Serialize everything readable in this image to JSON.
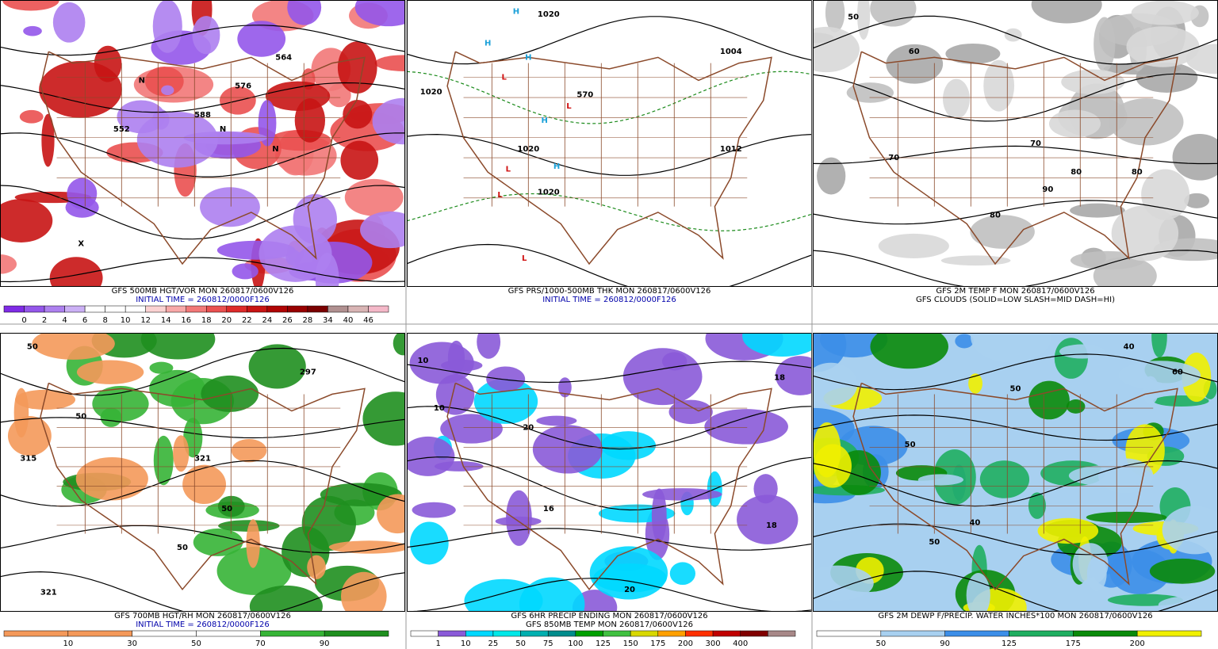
{
  "panels": [
    {
      "captions": [
        {
          "text": "GFS 500MB HGT/VOR MON 260817/0600V126",
          "color": "#000000"
        },
        {
          "text": "INITIAL TIME = 260812/0000F126",
          "color": "#0000aa"
        }
      ],
      "legend": {
        "labels": [
          "0",
          "2",
          "4",
          "6",
          "8",
          "10",
          "12",
          "14",
          "16",
          "18",
          "20",
          "22",
          "24",
          "26",
          "28",
          "34",
          "40",
          "46"
        ],
        "colors": [
          "#7f2be6",
          "#9457ea",
          "#ad80ef",
          "#cbb0f5",
          "#ffffff",
          "#ffffff",
          "#ffffff",
          "#fbd2d2",
          "#f8a8a8",
          "#f27878",
          "#ea5050",
          "#de2a2a",
          "#c81414",
          "#b00404",
          "#980000",
          "#7a0000",
          "#b09090",
          "#d8b4b4",
          "#f4b8c8"
        ]
      },
      "shading": [
        "#f27878",
        "#ea5050",
        "#c81414",
        "#9457ea",
        "#ad80ef"
      ],
      "map_labels": [
        "552",
        "564",
        "576",
        "588",
        "N",
        "N",
        "N",
        "X"
      ]
    },
    {
      "captions": [
        {
          "text": "GFS PRS/1000-500MB THK MON 260817/0600V126",
          "color": "#000000"
        },
        {
          "text": "INITIAL TIME = 260812/0000F126",
          "color": "#0000aa"
        }
      ],
      "shading": [],
      "map_labels": [
        "1020",
        "1020",
        "1020",
        "1020",
        "1004",
        "1012",
        "570",
        "H",
        "H",
        "H",
        "H",
        "H",
        "L",
        "L",
        "L",
        "L",
        "L"
      ]
    },
    {
      "captions": [
        {
          "text": "GFS 2M TEMP F MON 260817/0600V126",
          "color": "#000000"
        },
        {
          "text": "GFS CLOUDS (SOLID=LOW SLASH=MID DASH=HI)",
          "color": "#000000"
        }
      ],
      "shading": [
        "#a8a8a8",
        "#c0c0c0",
        "#d8d8d8"
      ],
      "map_labels": [
        "50",
        "60",
        "70",
        "70",
        "80",
        "80",
        "80",
        "90"
      ]
    },
    {
      "captions": [
        {
          "text": "GFS 700MB HGT/RH MON 260817/0600V126",
          "color": "#000000"
        },
        {
          "text": "INITIAL TIME = 260812/0000F126",
          "color": "#0000aa"
        }
      ],
      "legend": {
        "labels": [
          "10",
          "30",
          "50",
          "70",
          "90"
        ],
        "colors": [
          "#f4995a",
          "#f4995a",
          "#ffffff",
          "#ffffff",
          "#36b436",
          "#1f8f1f"
        ]
      },
      "shading": [
        "#36b436",
        "#1f8f1f",
        "#f4995a"
      ],
      "map_labels": [
        "50",
        "50",
        "50",
        "315",
        "297",
        "321",
        "321",
        "50"
      ]
    },
    {
      "captions": [
        {
          "text": "GFS 6HR PRECIP ENDING MON 260817/0600V126",
          "color": "#000000"
        },
        {
          "text": "GFS 850MB TEMP MON 260817/0600V126",
          "color": "#000000"
        }
      ],
      "legend": {
        "labels": [
          "1",
          "10",
          "25",
          "50",
          "75",
          "100",
          "125",
          "150",
          "175",
          "200",
          "300",
          "400"
        ],
        "colors": [
          "#ffffff",
          "#8a5ad8",
          "#00d8ff",
          "#00e8e8",
          "#00b0b0",
          "#008c8c",
          "#00a000",
          "#40c040",
          "#d8d800",
          "#ffa000",
          "#ff3000",
          "#c00000",
          "#800000",
          "#a88888"
        ]
      },
      "shading": [
        "#8a5ad8",
        "#00d8ff",
        "#8a5ad8"
      ],
      "map_labels": [
        "10",
        "10",
        "20",
        "20",
        "18",
        "18",
        "16"
      ]
    },
    {
      "captions": [
        {
          "text": "GFS 2M DEWP F/PRECIP. WATER INCHES*100 MON 260817/0600V126",
          "color": "#000000"
        }
      ],
      "legend": {
        "labels": [
          "50",
          "90",
          "125",
          "175",
          "200"
        ],
        "colors": [
          "#ffffff",
          "#a8d0f0",
          "#3c8ee8",
          "#1fae60",
          "#0a8a0a",
          "#f0f000"
        ]
      },
      "shading": [
        "#3c8ee8",
        "#1fae60",
        "#0a8a0a",
        "#f0f000",
        "#a8d0f0"
      ],
      "map_labels": [
        "50",
        "50",
        "40",
        "40",
        "60",
        "50"
      ]
    }
  ]
}
